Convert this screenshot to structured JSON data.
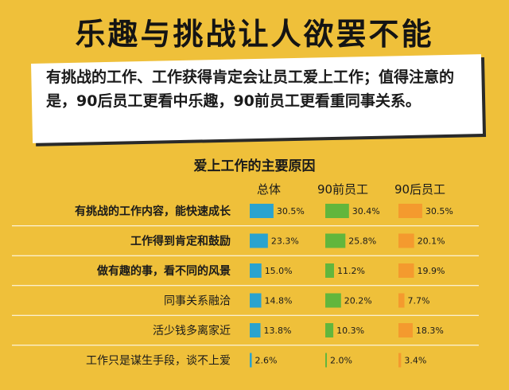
{
  "title": "乐趣与挑战让人欲罢不能",
  "callout": "有挑战的工作、工作获得肯定会让员工爱上工作；值得注意的是，90后员工更看中乐趣，90前员工更看重同事关系。",
  "chart_data": {
    "type": "bar",
    "title": "爱上工作的主要原因",
    "categories": [
      "有挑战的工作内容，能快速成长",
      "工作得到肯定和鼓励",
      "做有趣的事，看不同的风景",
      "同事关系融洽",
      "活少钱多离家近",
      "工作只是谋生手段，谈不上爱"
    ],
    "bold_categories": [
      true,
      true,
      true,
      false,
      false,
      false
    ],
    "series": [
      {
        "name": "总体",
        "color": "#2aa3cf",
        "values": [
          30.5,
          23.3,
          15.0,
          14.8,
          13.8,
          2.6
        ],
        "labels": [
          "30.5%",
          "23.3%",
          "15.0%",
          "14.8%",
          "13.8%",
          "2.6%"
        ]
      },
      {
        "name": "90前员工",
        "color": "#62b63c",
        "values": [
          30.4,
          25.8,
          11.2,
          20.2,
          10.3,
          2.0
        ],
        "labels": [
          "30.4%",
          "25.8%",
          "11.2%",
          "20.2%",
          "10.3%",
          "2.0%"
        ]
      },
      {
        "name": "90后员工",
        "color": "#f49a2e",
        "values": [
          30.5,
          20.1,
          19.9,
          7.7,
          18.3,
          3.4
        ],
        "labels": [
          "30.5%",
          "20.1%",
          "19.9%",
          "7.7%",
          "18.3%",
          "3.4%"
        ]
      }
    ],
    "value_unit": "%",
    "grid": false,
    "legend": "column-headers"
  }
}
